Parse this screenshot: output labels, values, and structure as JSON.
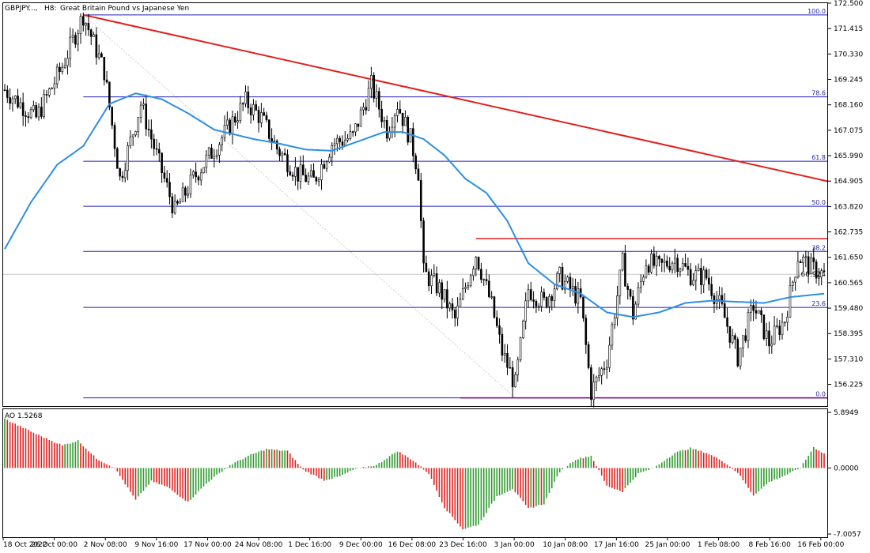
{
  "header": {
    "symbol": "GBPJPY...,",
    "timeframe": "H8:",
    "description": "Great Britain Pound vs Japanese Yen"
  },
  "indicator": {
    "label": "AO 1.5268"
  },
  "colors": {
    "fib": "#1f1fbf",
    "trend": "#e0201e",
    "resistance": "#e0201e",
    "support": "#800080",
    "ma": "#2d8ee6",
    "candle": "#000000",
    "ao_up": "#2e9a2e",
    "ao_down": "#e0201e",
    "current_price_line": "#c8c8c8",
    "grid": "#c0c0c0"
  },
  "chart_data": [
    {
      "type": "candlestick",
      "title": "GBPJPY...,  H8:  Great Britain Pound vs Japanese Yen",
      "price_axis_ticks": [
        "172.500",
        "171.415",
        "170.330",
        "169.245",
        "168.160",
        "167.075",
        "165.990",
        "164.905",
        "163.820",
        "162.735",
        "161.650",
        "160.565",
        "159.480",
        "158.395",
        "157.310",
        "156.225"
      ],
      "ylim": [
        155.3,
        172.5
      ],
      "time_axis_labels": [
        "18 Oct 2022",
        "26 Oct 00:00",
        "2 Nov 08:00",
        "9 Nov 16:00",
        "17 Nov 00:00",
        "24 Nov 08:00",
        "1 Dec 16:00",
        "9 Dec 00:00",
        "16 Dec 08:00",
        "23 Dec 16:00",
        "3 Jan 00:00",
        "10 Jan 08:00",
        "17 Jan 16:00",
        "25 Jan 00:00",
        "1 Feb 08:00",
        "8 Feb 16:00",
        "16 Feb 00:00"
      ],
      "current_price": "160.924",
      "fibonacci": {
        "high": 172.0,
        "low": 155.65,
        "levels": [
          {
            "label": "100.0",
            "value": 172.0
          },
          {
            "label": "78.6",
            "value": 168.5
          },
          {
            "label": "61.8",
            "value": 165.75
          },
          {
            "label": "50.0",
            "value": 163.83
          },
          {
            "label": "38.2",
            "value": 161.9
          },
          {
            "label": "23.6",
            "value": 159.51
          },
          {
            "label": "0.0",
            "value": 155.65
          }
        ]
      },
      "trendline": {
        "from": {
          "bar": 30,
          "price": 172.0
        },
        "to": {
          "bar": 314,
          "price": 164.9
        }
      },
      "resistance": {
        "price": 162.45,
        "from_bar": 180
      },
      "support": {
        "price": 155.65,
        "from_bar": 174
      },
      "moving_average_anchors": [
        {
          "bar": 0,
          "price": 162.0
        },
        {
          "bar": 10,
          "price": 164.0
        },
        {
          "bar": 20,
          "price": 165.6
        },
        {
          "bar": 30,
          "price": 166.4
        },
        {
          "bar": 40,
          "price": 168.2
        },
        {
          "bar": 50,
          "price": 168.65
        },
        {
          "bar": 60,
          "price": 168.4
        },
        {
          "bar": 70,
          "price": 167.8
        },
        {
          "bar": 80,
          "price": 167.1
        },
        {
          "bar": 95,
          "price": 166.7
        },
        {
          "bar": 105,
          "price": 166.5
        },
        {
          "bar": 115,
          "price": 166.25
        },
        {
          "bar": 125,
          "price": 166.2
        },
        {
          "bar": 135,
          "price": 166.6
        },
        {
          "bar": 145,
          "price": 167.0
        },
        {
          "bar": 152,
          "price": 167.0
        },
        {
          "bar": 160,
          "price": 166.7
        },
        {
          "bar": 168,
          "price": 166.0
        },
        {
          "bar": 176,
          "price": 165.0
        },
        {
          "bar": 184,
          "price": 164.4
        },
        {
          "bar": 192,
          "price": 163.2
        },
        {
          "bar": 200,
          "price": 161.4
        },
        {
          "bar": 210,
          "price": 160.5
        },
        {
          "bar": 220,
          "price": 160.1
        },
        {
          "bar": 230,
          "price": 159.3
        },
        {
          "bar": 240,
          "price": 159.1
        },
        {
          "bar": 250,
          "price": 159.3
        },
        {
          "bar": 260,
          "price": 159.7
        },
        {
          "bar": 270,
          "price": 159.8
        },
        {
          "bar": 280,
          "price": 159.75
        },
        {
          "bar": 290,
          "price": 159.7
        },
        {
          "bar": 300,
          "price": 159.95
        },
        {
          "bar": 313,
          "price": 160.1
        }
      ],
      "close_anchors": [
        {
          "bar": 0,
          "price": 168.8
        },
        {
          "bar": 12,
          "price": 167.6
        },
        {
          "bar": 22,
          "price": 169.8
        },
        {
          "bar": 30,
          "price": 172.0
        },
        {
          "bar": 38,
          "price": 169.6
        },
        {
          "bar": 44,
          "price": 165.0
        },
        {
          "bar": 52,
          "price": 168.2
        },
        {
          "bar": 58,
          "price": 166.0
        },
        {
          "bar": 65,
          "price": 163.6
        },
        {
          "bar": 72,
          "price": 165.0
        },
        {
          "bar": 82,
          "price": 166.6
        },
        {
          "bar": 92,
          "price": 168.3
        },
        {
          "bar": 98,
          "price": 167.6
        },
        {
          "bar": 104,
          "price": 166.3
        },
        {
          "bar": 112,
          "price": 165.2
        },
        {
          "bar": 118,
          "price": 164.9
        },
        {
          "bar": 125,
          "price": 166.5
        },
        {
          "bar": 133,
          "price": 166.8
        },
        {
          "bar": 140,
          "price": 169.0
        },
        {
          "bar": 146,
          "price": 167.1
        },
        {
          "bar": 150,
          "price": 168.2
        },
        {
          "bar": 155,
          "price": 166.7
        },
        {
          "bar": 158,
          "price": 165.3
        },
        {
          "bar": 160,
          "price": 161.0
        },
        {
          "bar": 166,
          "price": 160.3
        },
        {
          "bar": 172,
          "price": 159.0
        },
        {
          "bar": 180,
          "price": 161.8
        },
        {
          "bar": 186,
          "price": 159.6
        },
        {
          "bar": 190,
          "price": 157.6
        },
        {
          "bar": 195,
          "price": 156.2
        },
        {
          "bar": 200,
          "price": 160.3
        },
        {
          "bar": 206,
          "price": 159.7
        },
        {
          "bar": 212,
          "price": 160.8
        },
        {
          "bar": 220,
          "price": 159.8
        },
        {
          "bar": 224,
          "price": 155.9
        },
        {
          "bar": 230,
          "price": 157.3
        },
        {
          "bar": 236,
          "price": 161.4
        },
        {
          "bar": 240,
          "price": 159.2
        },
        {
          "bar": 245,
          "price": 161.5
        },
        {
          "bar": 250,
          "price": 161.2
        },
        {
          "bar": 256,
          "price": 161.6
        },
        {
          "bar": 262,
          "price": 160.9
        },
        {
          "bar": 268,
          "price": 160.8
        },
        {
          "bar": 274,
          "price": 159.4
        },
        {
          "bar": 280,
          "price": 157.4
        },
        {
          "bar": 286,
          "price": 159.6
        },
        {
          "bar": 292,
          "price": 158.0
        },
        {
          "bar": 298,
          "price": 159.0
        },
        {
          "bar": 303,
          "price": 161.7
        },
        {
          "bar": 308,
          "price": 161.2
        },
        {
          "bar": 313,
          "price": 160.9
        }
      ]
    },
    {
      "type": "bar",
      "title": "AO 1.5268",
      "axis_ticks": [
        "5.8949",
        "0.0000",
        "-7.0057"
      ],
      "ylim": [
        -7.0057,
        5.8949
      ],
      "value_anchors": [
        {
          "bar": 0,
          "value": 5.2
        },
        {
          "bar": 12,
          "value": 3.6
        },
        {
          "bar": 22,
          "value": 2.4
        },
        {
          "bar": 28,
          "value": 2.9
        },
        {
          "bar": 35,
          "value": 1.0
        },
        {
          "bar": 42,
          "value": 0.0
        },
        {
          "bar": 50,
          "value": -3.4
        },
        {
          "bar": 56,
          "value": -1.4
        },
        {
          "bar": 62,
          "value": -2.0
        },
        {
          "bar": 70,
          "value": -3.6
        },
        {
          "bar": 78,
          "value": -1.4
        },
        {
          "bar": 86,
          "value": 0.3
        },
        {
          "bar": 94,
          "value": 1.4
        },
        {
          "bar": 100,
          "value": 2.0
        },
        {
          "bar": 108,
          "value": 1.8
        },
        {
          "bar": 114,
          "value": -0.2
        },
        {
          "bar": 122,
          "value": -1.3
        },
        {
          "bar": 128,
          "value": -0.9
        },
        {
          "bar": 134,
          "value": -0.1
        },
        {
          "bar": 142,
          "value": 0.3
        },
        {
          "bar": 150,
          "value": 1.8
        },
        {
          "bar": 156,
          "value": 0.8
        },
        {
          "bar": 162,
          "value": -0.6
        },
        {
          "bar": 168,
          "value": -4.2
        },
        {
          "bar": 175,
          "value": -6.5
        },
        {
          "bar": 181,
          "value": -6.0
        },
        {
          "bar": 188,
          "value": -3.0
        },
        {
          "bar": 194,
          "value": -2.2
        },
        {
          "bar": 200,
          "value": -4.3
        },
        {
          "bar": 206,
          "value": -3.8
        },
        {
          "bar": 212,
          "value": -0.4
        },
        {
          "bar": 218,
          "value": 0.9
        },
        {
          "bar": 224,
          "value": 1.3
        },
        {
          "bar": 230,
          "value": -1.9
        },
        {
          "bar": 236,
          "value": -2.5
        },
        {
          "bar": 242,
          "value": -0.6
        },
        {
          "bar": 248,
          "value": 0.0
        },
        {
          "bar": 256,
          "value": 1.6
        },
        {
          "bar": 262,
          "value": 2.1
        },
        {
          "bar": 268,
          "value": 1.6
        },
        {
          "bar": 274,
          "value": 0.8
        },
        {
          "bar": 280,
          "value": -0.5
        },
        {
          "bar": 286,
          "value": -2.9
        },
        {
          "bar": 292,
          "value": -1.5
        },
        {
          "bar": 298,
          "value": -0.8
        },
        {
          "bar": 304,
          "value": 0.0
        },
        {
          "bar": 309,
          "value": 2.2
        },
        {
          "bar": 313,
          "value": 1.5268
        }
      ]
    }
  ]
}
